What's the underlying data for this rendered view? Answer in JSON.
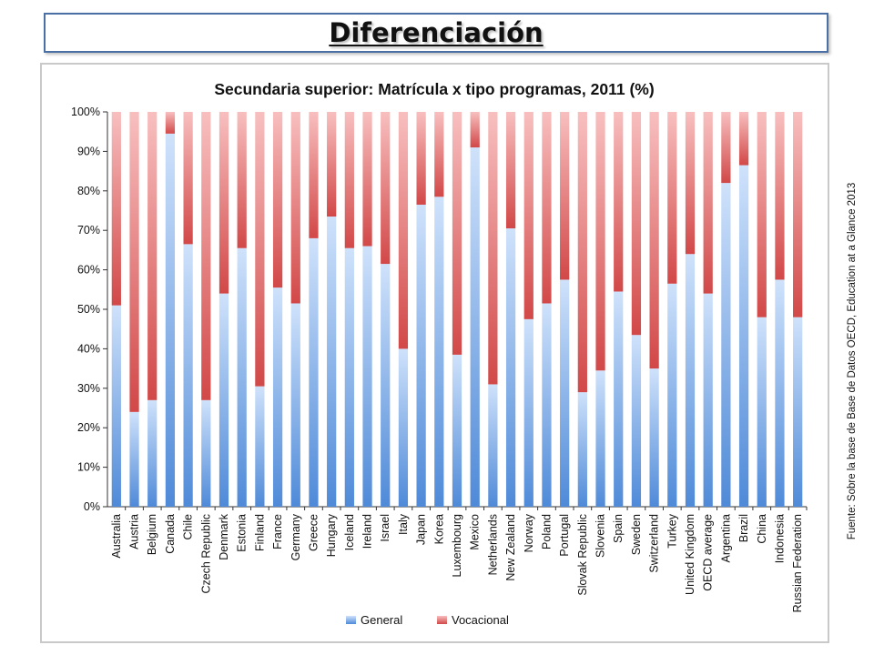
{
  "slide": {
    "title": "Diferenciación",
    "source": "Fuente: Sobre la base de Base de Datos OECD, Education at a Glance 2013"
  },
  "colors": {
    "general": "#6ea3e6",
    "vocacional": "#e05c5c"
  },
  "chart_data": {
    "type": "bar",
    "stacked": true,
    "title": "Secundaria superior: Matrícula x tipo programas, 2011 (%)",
    "xlabel": "",
    "ylabel": "",
    "ylim": [
      0,
      100
    ],
    "yticks": [
      "0%",
      "10%",
      "20%",
      "30%",
      "40%",
      "50%",
      "60%",
      "70%",
      "80%",
      "90%",
      "100%"
    ],
    "legend_position": "bottom",
    "categories": [
      "Australia",
      "Austria",
      "Belgium",
      "Canada",
      "Chile",
      "Czech Republic",
      "Denmark",
      "Estonia",
      "Finland",
      "France",
      "Germany",
      "Greece",
      "Hungary",
      "Iceland",
      "Ireland",
      "Israel",
      "Italy",
      "Japan",
      "Korea",
      "Luxembourg",
      "Mexico",
      "Netherlands",
      "New Zealand",
      "Norway",
      "Poland",
      "Portugal",
      "Slovak Republic",
      "Slovenia",
      "Spain",
      "Sweden",
      "Switzerland",
      "Turkey",
      "United Kingdom",
      "OECD average",
      "Argentina",
      "Brazil",
      "China",
      "Indonesia",
      "Russian Federation"
    ],
    "series": [
      {
        "name": "General",
        "values": [
          51,
          24,
          27,
          94.5,
          66.5,
          27,
          54,
          65.5,
          30.5,
          55.5,
          51.5,
          68,
          73.5,
          65.5,
          66,
          61.5,
          40,
          76.5,
          78.5,
          38.5,
          91,
          31,
          70.5,
          47.5,
          51.5,
          57.5,
          29,
          34.5,
          54.5,
          43.5,
          35,
          56.5,
          64,
          54,
          82,
          86.5,
          48,
          57.5,
          48
        ]
      },
      {
        "name": "Vocacional",
        "values": [
          49,
          76,
          73,
          5.5,
          33.5,
          73,
          46,
          34.5,
          69.5,
          44.5,
          48.5,
          32,
          26.5,
          34.5,
          34,
          38.5,
          60,
          23.5,
          21.5,
          61.5,
          9,
          69,
          29.5,
          52.5,
          48.5,
          42.5,
          71,
          65.5,
          45.5,
          56.5,
          65,
          43.5,
          36,
          46,
          18,
          13.5,
          52,
          42.5,
          52
        ]
      }
    ]
  }
}
